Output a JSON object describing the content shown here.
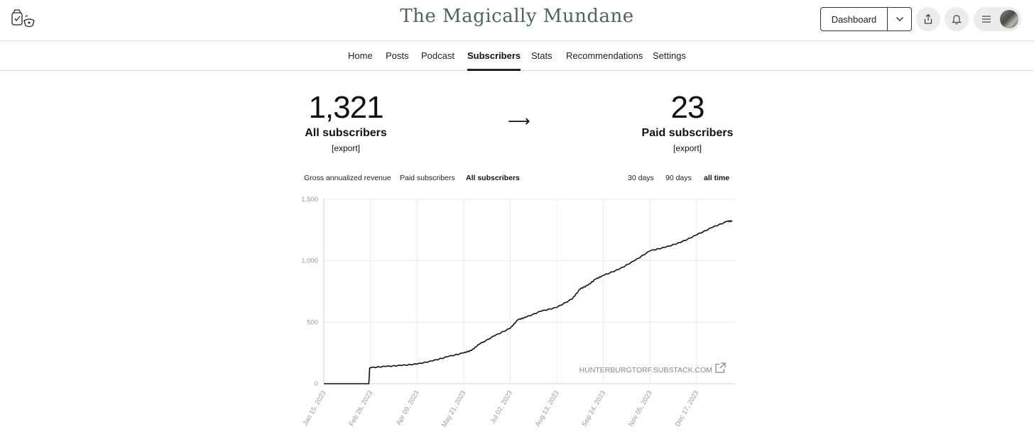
{
  "header": {
    "site_title": "The Magically Mundane",
    "dashboard_label": "Dashboard",
    "icons": [
      "logo-icon",
      "chevron-down-icon",
      "share-icon",
      "bell-icon",
      "menu-icon"
    ]
  },
  "nav": {
    "items": [
      {
        "label": "Home",
        "active": false
      },
      {
        "label": "Posts",
        "active": false
      },
      {
        "label": "Podcast",
        "active": false
      },
      {
        "label": "Subscribers",
        "active": true
      },
      {
        "label": "Stats",
        "active": false
      },
      {
        "label": "Recommendations",
        "active": false
      },
      {
        "label": "Settings",
        "active": false
      }
    ]
  },
  "stats": {
    "all": {
      "value": "1,321",
      "label": "All subscribers",
      "export": "[export]"
    },
    "arrow": "⟶",
    "paid": {
      "value": "23",
      "label": "Paid subscribers",
      "export": "[export]"
    }
  },
  "chart_controls": {
    "metrics": [
      "Gross annualized revenue",
      "Paid subscribers",
      "All subscribers"
    ],
    "active_metric": "All subscribers",
    "ranges": [
      "30 days",
      "90 days",
      "all time"
    ],
    "active_range": "all time"
  },
  "chart_data": {
    "type": "line",
    "title": "",
    "series": [
      {
        "name": "All subscribers",
        "color": "#111111"
      }
    ],
    "x_ticks": [
      "Jan 15, 2023",
      "Feb 26, 2023",
      "Apr 09, 2023",
      "May 21, 2023",
      "Jul 02, 2023",
      "Aug 13, 2023",
      "Sep 24, 2023",
      "Nov 05, 2023",
      "Dec 17, 2023"
    ],
    "y_ticks": [
      "0",
      "500",
      "1,000",
      "1,500"
    ],
    "ylim": [
      0,
      1500
    ],
    "points": [
      {
        "week": 0,
        "value": 0
      },
      {
        "week": 5.8,
        "value": 0
      },
      {
        "week": 5.9,
        "value": 125
      },
      {
        "week": 6,
        "value": 130
      },
      {
        "week": 8,
        "value": 140
      },
      {
        "week": 10,
        "value": 148
      },
      {
        "week": 12,
        "value": 160
      },
      {
        "week": 14,
        "value": 185
      },
      {
        "week": 16,
        "value": 220
      },
      {
        "week": 18,
        "value": 250
      },
      {
        "week": 19,
        "value": 270
      },
      {
        "week": 20,
        "value": 320
      },
      {
        "week": 22,
        "value": 390
      },
      {
        "week": 24,
        "value": 450
      },
      {
        "week": 25,
        "value": 520
      },
      {
        "week": 26,
        "value": 540
      },
      {
        "week": 28,
        "value": 590
      },
      {
        "week": 30,
        "value": 620
      },
      {
        "week": 32,
        "value": 690
      },
      {
        "week": 33,
        "value": 770
      },
      {
        "week": 34,
        "value": 800
      },
      {
        "week": 35,
        "value": 850
      },
      {
        "week": 36,
        "value": 880
      },
      {
        "week": 38,
        "value": 930
      },
      {
        "week": 40,
        "value": 1000
      },
      {
        "week": 42,
        "value": 1080
      },
      {
        "week": 44,
        "value": 1110
      },
      {
        "week": 46,
        "value": 1150
      },
      {
        "week": 48,
        "value": 1210
      },
      {
        "week": 50,
        "value": 1270
      },
      {
        "week": 52,
        "value": 1321
      },
      {
        "week": 52.6,
        "value": 1321
      }
    ],
    "x_max_week": 52.6,
    "watermark": "HUNTERBURGTORF.SUBSTACK.COM"
  }
}
